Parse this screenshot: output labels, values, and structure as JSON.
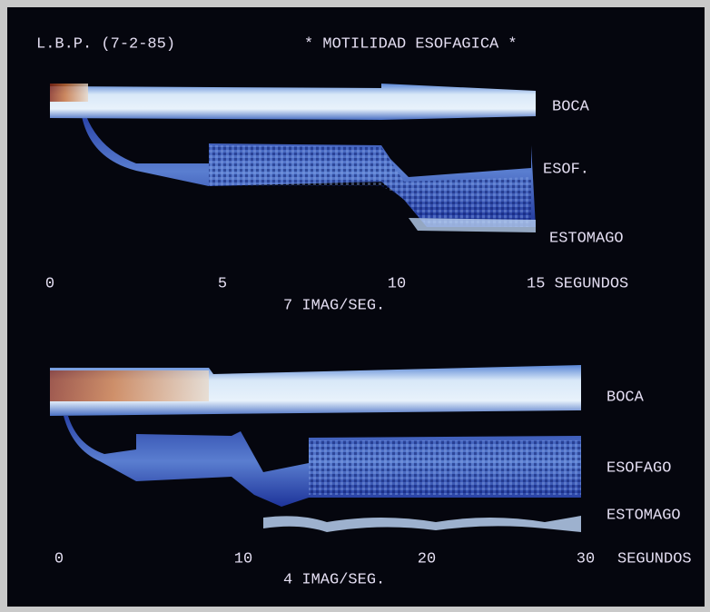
{
  "header": {
    "id": "L.B.P. (7-2-85)",
    "title": "* MOTILIDAD ESOFAGICA *"
  },
  "panels": [
    {
      "labels": [
        "BOCA",
        "ESOF.",
        "ESTOMAGO"
      ],
      "axis": [
        "0",
        "5",
        "10",
        "15 SEGUNDOS"
      ],
      "rate": "7 IMAG/SEG."
    },
    {
      "labels": [
        "BOCA",
        "ESOFAGO",
        "ESTOMAGO"
      ],
      "axis": [
        "0",
        "10",
        "20",
        "30",
        "SEGUNDOS"
      ],
      "rate": "4 IMAG/SEG."
    }
  ]
}
